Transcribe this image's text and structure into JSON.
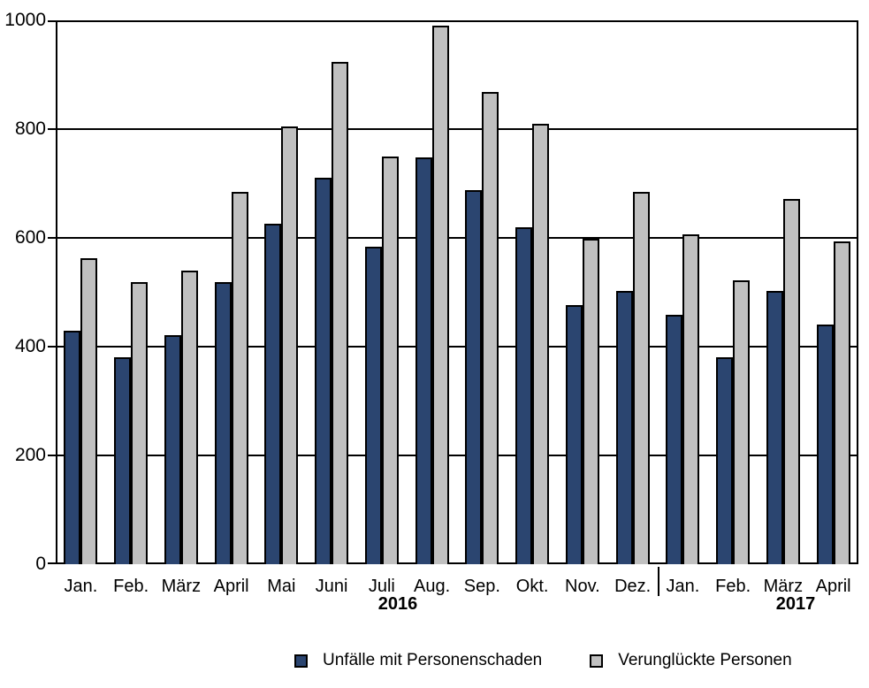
{
  "chart_data": {
    "type": "bar",
    "title": "",
    "xlabel": "",
    "ylabel": "",
    "categories": [
      "Jan.",
      "Feb.",
      "März",
      "April",
      "Mai",
      "Juni",
      "Juli",
      "Aug.",
      "Sep.",
      "Okt.",
      "Nov.",
      "Dez.",
      "Jan.",
      "Feb.",
      "März",
      "April"
    ],
    "year_groups": [
      {
        "label": "2016",
        "start_index": 0,
        "end_index": 11
      },
      {
        "label": "2017",
        "start_index": 12,
        "end_index": 15
      }
    ],
    "series": [
      {
        "name": "Unfälle mit Personenschaden",
        "color": "#2B4570",
        "values": [
          430,
          380,
          421,
          518,
          626,
          711,
          583,
          748,
          688,
          620,
          476,
          503,
          459,
          381,
          503,
          441
        ]
      },
      {
        "name": "Verunglückte Personen",
        "color": "#C0C0C0",
        "values": [
          563,
          518,
          540,
          685,
          805,
          923,
          750,
          991,
          869,
          809,
          599,
          685,
          607,
          522,
          672,
          594
        ]
      }
    ],
    "ylim": [
      0,
      1000
    ],
    "yticks": [
      0,
      200,
      400,
      600,
      800,
      1000
    ],
    "ytick_labels": [
      "0",
      "200",
      "400",
      "600",
      "800",
      "1000"
    ],
    "grid": true,
    "legend_position": "bottom",
    "axis_color": "#000000",
    "background_color": "#ffffff"
  }
}
